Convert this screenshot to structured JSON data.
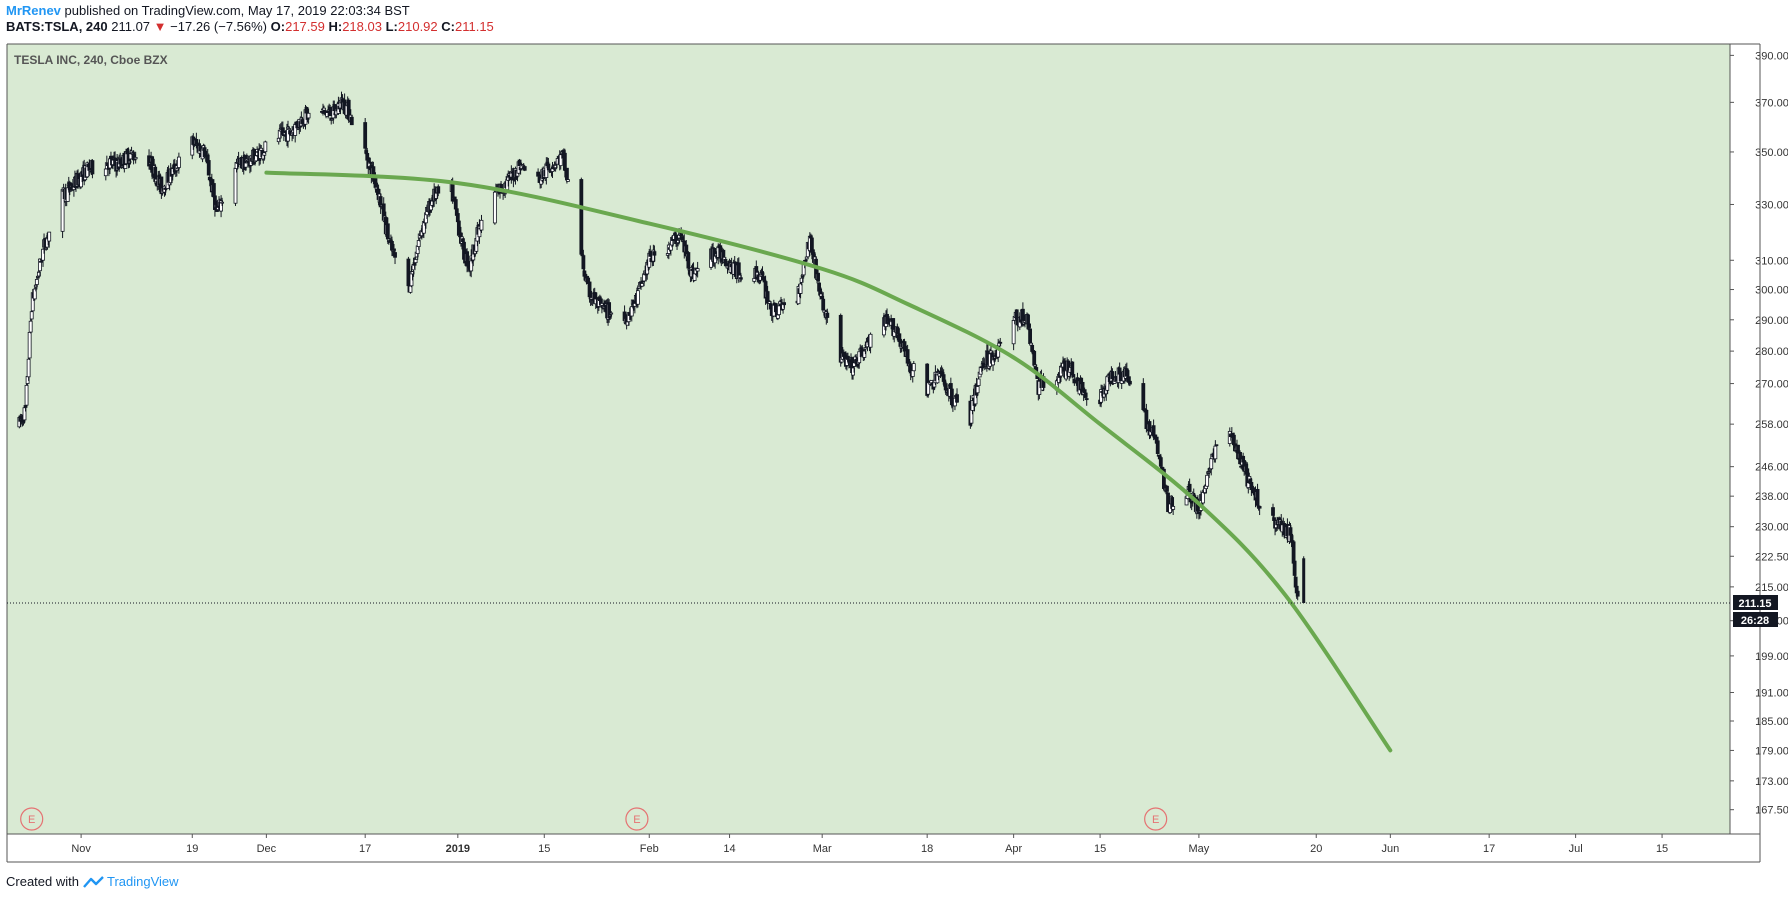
{
  "header": {
    "author": "MrRenev",
    "published_text": "published on TradingView.com, May 17, 2019 22:03:34 BST",
    "symbol": "BATS:TSLA, 240",
    "last": "211.07",
    "change_arrow": "▼",
    "change": "−17.26 (−7.56%)",
    "o_label": "O:",
    "o_value": "217.59",
    "h_label": "H:",
    "h_value": "218.03",
    "l_label": "L:",
    "l_value": "210.92",
    "c_label": "C:",
    "c_value": "211.15"
  },
  "legend": {
    "title": "TESLA INC, 240, Cboe BZX"
  },
  "price_labels": {
    "last_price": "211.15",
    "countdown": "26:28"
  },
  "earnings_marker": "E",
  "footer": {
    "created_with": "Created with",
    "brand": "TradingView"
  },
  "colors": {
    "background": "#d9ead3",
    "candle": "#131722",
    "curve": "#6aa84f",
    "earnings": "#e57373",
    "down": "#d32f2f",
    "brand": "#2196f3"
  },
  "chart_data": {
    "type": "candlestick",
    "title": "TESLA INC, 240, Cboe BZX",
    "y_scale": "log",
    "ylim": [
      163,
      395
    ],
    "y_ticks": [
      390.0,
      370.0,
      350.0,
      330.0,
      310.0,
      300.0,
      290.0,
      280.0,
      270.0,
      258.0,
      246.0,
      238.0,
      230.0,
      222.5,
      215.0,
      207.0,
      199.0,
      191.0,
      185.0,
      179.0,
      173.0,
      167.5
    ],
    "x_ticks": [
      "Nov",
      "19",
      "Dec",
      "17",
      "2019",
      "15",
      "Feb",
      "14",
      "Mar",
      "18",
      "Apr",
      "15",
      "May",
      "20",
      "Jun",
      "17",
      "Jul",
      "15"
    ],
    "x_tick_dates": [
      "2018-11-01",
      "2018-11-19",
      "2018-12-01",
      "2018-12-17",
      "2019-01-01",
      "2019-01-15",
      "2019-02-01",
      "2019-02-14",
      "2019-03-01",
      "2019-03-18",
      "2019-04-01",
      "2019-04-15",
      "2019-05-01",
      "2019-05-20",
      "2019-06-01",
      "2019-06-17",
      "2019-07-01",
      "2019-07-15"
    ],
    "last_price": 211.15,
    "earnings_dates": [
      "2018-10-24",
      "2019-01-30",
      "2019-04-24"
    ],
    "price_path": [
      [
        "2018-10-22",
        258
      ],
      [
        "2018-10-23",
        262
      ],
      [
        "2018-10-24",
        295
      ],
      [
        "2018-10-26",
        315
      ],
      [
        "2018-10-29",
        333
      ],
      [
        "2018-10-31",
        338
      ],
      [
        "2018-11-02",
        343
      ],
      [
        "2018-11-05",
        346
      ],
      [
        "2018-11-07",
        345
      ],
      [
        "2018-11-09",
        349
      ],
      [
        "2018-11-12",
        347
      ],
      [
        "2018-11-14",
        336
      ],
      [
        "2018-11-16",
        343
      ],
      [
        "2018-11-19",
        354
      ],
      [
        "2018-11-21",
        350
      ],
      [
        "2018-11-23",
        327
      ],
      [
        "2018-11-26",
        345
      ],
      [
        "2018-11-28",
        346
      ],
      [
        "2018-11-30",
        350
      ],
      [
        "2018-12-03",
        356
      ],
      [
        "2018-12-05",
        358
      ],
      [
        "2018-12-07",
        364
      ],
      [
        "2018-12-10",
        366
      ],
      [
        "2018-12-12",
        365
      ],
      [
        "2018-12-13",
        370
      ],
      [
        "2018-12-14",
        368
      ],
      [
        "2018-12-17",
        350
      ],
      [
        "2018-12-19",
        336
      ],
      [
        "2018-12-21",
        315
      ],
      [
        "2018-12-24",
        300
      ],
      [
        "2018-12-26",
        320
      ],
      [
        "2018-12-28",
        333
      ],
      [
        "2018-12-31",
        335
      ],
      [
        "2019-01-02",
        312
      ],
      [
        "2019-01-03",
        308
      ],
      [
        "2019-01-04",
        318
      ],
      [
        "2019-01-07",
        334
      ],
      [
        "2019-01-09",
        338
      ],
      [
        "2019-01-11",
        345
      ],
      [
        "2019-01-14",
        339
      ],
      [
        "2019-01-16",
        345
      ],
      [
        "2019-01-18",
        348
      ],
      [
        "2019-01-22",
        300
      ],
      [
        "2019-01-24",
        294
      ],
      [
        "2019-01-28",
        290
      ],
      [
        "2019-01-30",
        297
      ],
      [
        "2019-02-01",
        310
      ],
      [
        "2019-02-04",
        315
      ],
      [
        "2019-02-06",
        319
      ],
      [
        "2019-02-08",
        305
      ],
      [
        "2019-02-11",
        312
      ],
      [
        "2019-02-13",
        312
      ],
      [
        "2019-02-15",
        306
      ],
      [
        "2019-02-19",
        305
      ],
      [
        "2019-02-21",
        292
      ],
      [
        "2019-02-25",
        298
      ],
      [
        "2019-02-27",
        318
      ],
      [
        "2019-03-01",
        295
      ],
      [
        "2019-03-04",
        278
      ],
      [
        "2019-03-06",
        275
      ],
      [
        "2019-03-08",
        281
      ],
      [
        "2019-03-11",
        289
      ],
      [
        "2019-03-13",
        287
      ],
      [
        "2019-03-15",
        276
      ],
      [
        "2019-03-18",
        268
      ],
      [
        "2019-03-20",
        273
      ],
      [
        "2019-03-22",
        266
      ],
      [
        "2019-03-25",
        260
      ],
      [
        "2019-03-27",
        277
      ],
      [
        "2019-03-29",
        279
      ],
      [
        "2019-04-01",
        290
      ],
      [
        "2019-04-03",
        291
      ],
      [
        "2019-04-05",
        269
      ],
      [
        "2019-04-08",
        273
      ],
      [
        "2019-04-10",
        275
      ],
      [
        "2019-04-12",
        268
      ],
      [
        "2019-04-15",
        266
      ],
      [
        "2019-04-17",
        273
      ],
      [
        "2019-04-19",
        273
      ],
      [
        "2019-04-22",
        261
      ],
      [
        "2019-04-24",
        253
      ],
      [
        "2019-04-26",
        236
      ],
      [
        "2019-04-29",
        240
      ],
      [
        "2019-05-01",
        234
      ],
      [
        "2019-05-03",
        248
      ],
      [
        "2019-05-06",
        256
      ],
      [
        "2019-05-08",
        246
      ],
      [
        "2019-05-10",
        238
      ],
      [
        "2019-05-13",
        232
      ],
      [
        "2019-05-15",
        229
      ],
      [
        "2019-05-16",
        228
      ],
      [
        "2019-05-17",
        211
      ]
    ],
    "curve": [
      [
        "2018-12-01",
        342
      ],
      [
        "2019-01-01",
        338
      ],
      [
        "2019-02-01",
        323
      ],
      [
        "2019-03-01",
        307
      ],
      [
        "2019-03-15",
        295
      ],
      [
        "2019-04-01",
        278
      ],
      [
        "2019-04-15",
        258
      ],
      [
        "2019-05-01",
        236
      ],
      [
        "2019-05-15",
        213
      ],
      [
        "2019-06-01",
        179
      ]
    ]
  }
}
